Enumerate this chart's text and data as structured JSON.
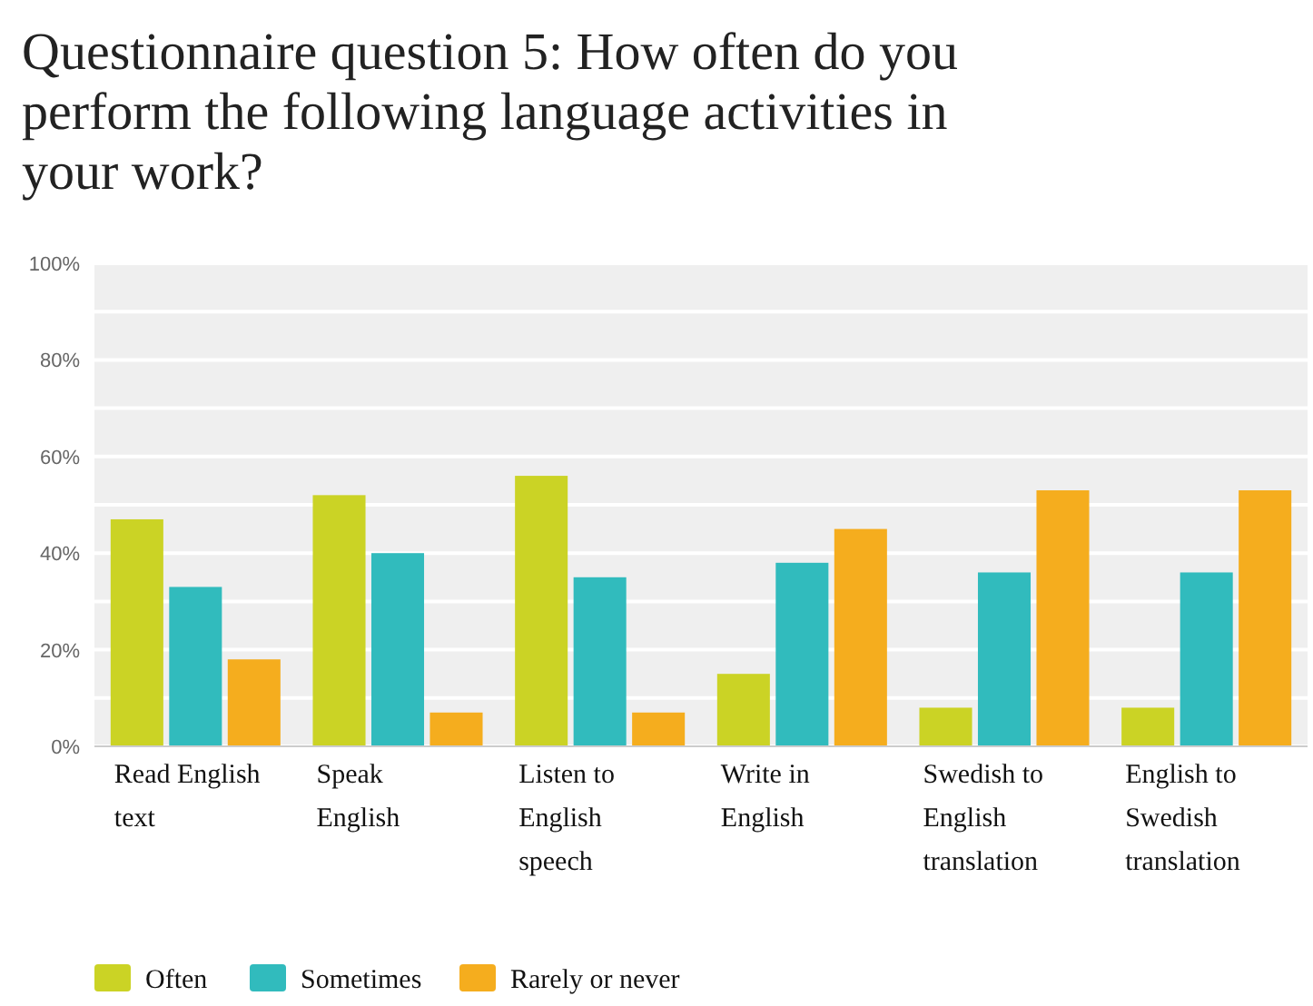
{
  "chart_data": {
    "type": "bar",
    "title": "Questionnaire question 5: How often do you perform the following language activities in your work?",
    "categories": [
      "Read English text",
      "Speak English",
      "Listen to English speech",
      "Write in English",
      "Swedish to English translation",
      "English to Swedish translation"
    ],
    "series": [
      {
        "name": "Often",
        "color": "#cbd325",
        "values": [
          47,
          52,
          56,
          15,
          8,
          8
        ]
      },
      {
        "name": "Sometimes",
        "color": "#31bbbd",
        "values": [
          33,
          40,
          35,
          38,
          36,
          36
        ]
      },
      {
        "name": "Rarely or never",
        "color": "#f5ad1e",
        "values": [
          18,
          7,
          7,
          45,
          53,
          53
        ]
      }
    ],
    "ylim": [
      0,
      100
    ],
    "yticks": [
      {
        "value": 0,
        "label": "0%"
      },
      {
        "value": 10,
        "label": null
      },
      {
        "value": 20,
        "label": "20%"
      },
      {
        "value": 30,
        "label": null
      },
      {
        "value": 40,
        "label": "40%"
      },
      {
        "value": 50,
        "label": null
      },
      {
        "value": 60,
        "label": "60%"
      },
      {
        "value": 70,
        "label": null
      },
      {
        "value": 80,
        "label": "80%"
      },
      {
        "value": 90,
        "label": null
      },
      {
        "value": 100,
        "label": "100%"
      }
    ],
    "grid": "y",
    "legend": "bottom left"
  }
}
